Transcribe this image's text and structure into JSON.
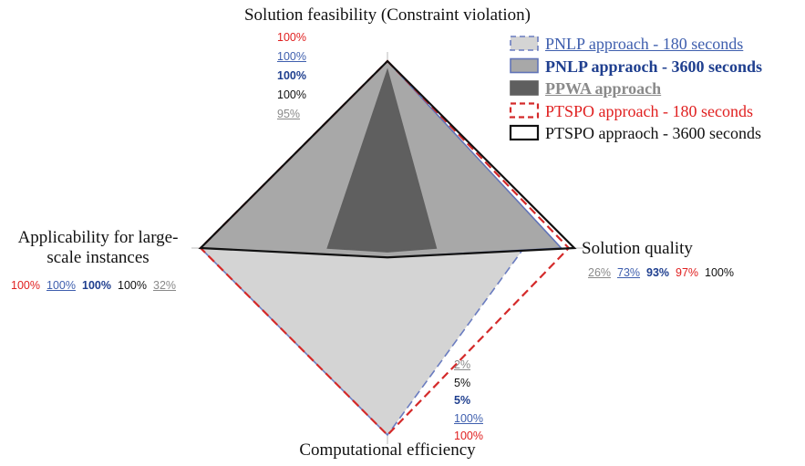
{
  "chart_data": {
    "type": "radar",
    "title": "Solution feasibility (Constraint violation)",
    "categories": [
      "Solution feasibility (Constraint violation)",
      "Solution quality",
      "Computational efficiency",
      "Applicability for large-scale instances"
    ],
    "ylim": [
      0,
      100
    ],
    "series": [
      {
        "name": "PNLP approach - 180 seconds",
        "color": "#d4d4d4",
        "edge_color": "#6a7cc0",
        "dashed": true,
        "values": [
          100,
          73,
          100,
          100
        ],
        "value_labels": [
          "100%",
          "73%",
          "100%",
          "100%"
        ]
      },
      {
        "name": "PNLP appraoch - 3600 seconds",
        "color": "#a8a8a8",
        "edge_color": "#6174b8",
        "dashed": false,
        "values": [
          100,
          93,
          5,
          100
        ],
        "value_labels": [
          "100%",
          "93%",
          "5%",
          "100%"
        ]
      },
      {
        "name": "PPWA approach",
        "color": "#5f5f5f",
        "edge_color": "#5f5f5f",
        "dashed": false,
        "values": [
          95,
          26,
          2,
          32
        ],
        "value_labels": [
          "95%",
          "26%",
          "2%",
          "32%"
        ]
      },
      {
        "name": "PTSPO approach - 180 seconds",
        "color": "none",
        "edge_color": "#d42a2a",
        "dashed": true,
        "values": [
          100,
          97,
          100,
          100
        ],
        "value_labels": [
          "100%",
          "97%",
          "100%",
          "100%"
        ]
      },
      {
        "name": "PTSPO appraoch - 3600 seconds",
        "color": "none",
        "edge_color": "#111111",
        "dashed": false,
        "values": [
          100,
          100,
          5,
          100
        ],
        "value_labels": [
          "100%",
          "100%",
          "5%",
          "100%"
        ]
      }
    ]
  }
}
